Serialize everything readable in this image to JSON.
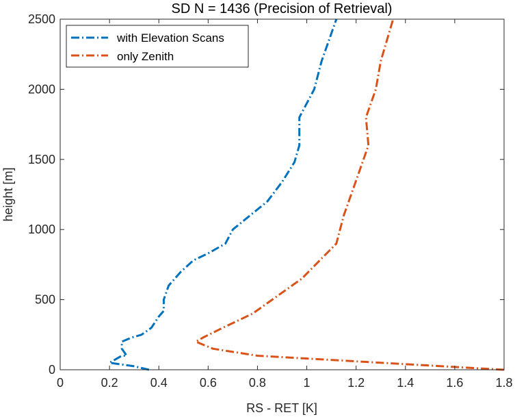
{
  "chart_data": {
    "type": "line",
    "title": "SD N = 1436 (Precision of Retrieval)",
    "xlabel": "RS - RET [K]",
    "ylabel": "height [m]",
    "xlim": [
      0,
      1.8
    ],
    "ylim": [
      0,
      2500
    ],
    "x_ticks": [
      "0",
      "0.2",
      "0.4",
      "0.6",
      "0.8",
      "1",
      "1.2",
      "1.4",
      "1.6",
      "1.8"
    ],
    "y_ticks": [
      "0",
      "500",
      "1000",
      "1500",
      "2000",
      "2500"
    ],
    "grid": false,
    "legend_position": "top-left",
    "series": [
      {
        "name": "with Elevation Scans",
        "color": "#0072BD",
        "line_style": "dash-dot",
        "points": [
          {
            "x": 0.36,
            "y": 0
          },
          {
            "x": 0.3,
            "y": 25
          },
          {
            "x": 0.2,
            "y": 50
          },
          {
            "x": 0.25,
            "y": 100
          },
          {
            "x": 0.27,
            "y": 100
          },
          {
            "x": 0.25,
            "y": 150
          },
          {
            "x": 0.25,
            "y": 200
          },
          {
            "x": 0.29,
            "y": 230
          },
          {
            "x": 0.33,
            "y": 250
          },
          {
            "x": 0.37,
            "y": 300
          },
          {
            "x": 0.4,
            "y": 380
          },
          {
            "x": 0.42,
            "y": 420
          },
          {
            "x": 0.42,
            "y": 500
          },
          {
            "x": 0.44,
            "y": 600
          },
          {
            "x": 0.49,
            "y": 700
          },
          {
            "x": 0.54,
            "y": 780
          },
          {
            "x": 0.6,
            "y": 830
          },
          {
            "x": 0.67,
            "y": 900
          },
          {
            "x": 0.7,
            "y": 1000
          },
          {
            "x": 0.77,
            "y": 1100
          },
          {
            "x": 0.84,
            "y": 1200
          },
          {
            "x": 0.9,
            "y": 1340
          },
          {
            "x": 0.95,
            "y": 1480
          },
          {
            "x": 0.97,
            "y": 1600
          },
          {
            "x": 0.97,
            "y": 1800
          },
          {
            "x": 1.03,
            "y": 2000
          },
          {
            "x": 1.06,
            "y": 2200
          },
          {
            "x": 1.1,
            "y": 2400
          },
          {
            "x": 1.12,
            "y": 2500
          }
        ]
      },
      {
        "name": "only Zenith",
        "color": "#D95319",
        "line_style": "dash-dot",
        "points": [
          {
            "x": 1.8,
            "y": 0
          },
          {
            "x": 1.6,
            "y": 20
          },
          {
            "x": 1.2,
            "y": 60
          },
          {
            "x": 0.8,
            "y": 100
          },
          {
            "x": 0.62,
            "y": 150
          },
          {
            "x": 0.55,
            "y": 200
          },
          {
            "x": 0.58,
            "y": 230
          },
          {
            "x": 0.66,
            "y": 300
          },
          {
            "x": 0.78,
            "y": 400
          },
          {
            "x": 0.86,
            "y": 500
          },
          {
            "x": 0.98,
            "y": 650
          },
          {
            "x": 1.12,
            "y": 900
          },
          {
            "x": 1.15,
            "y": 1100
          },
          {
            "x": 1.19,
            "y": 1300
          },
          {
            "x": 1.25,
            "y": 1600
          },
          {
            "x": 1.24,
            "y": 1800
          },
          {
            "x": 1.28,
            "y": 2000
          },
          {
            "x": 1.3,
            "y": 2200
          },
          {
            "x": 1.35,
            "y": 2500
          }
        ]
      }
    ]
  }
}
